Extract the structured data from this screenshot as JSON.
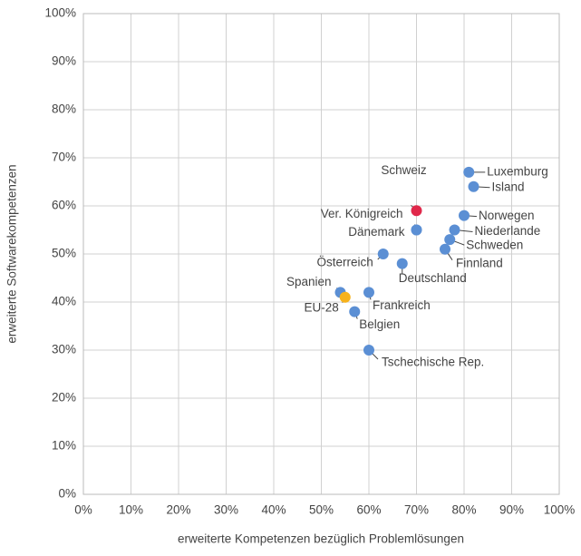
{
  "chart_data": {
    "type": "scatter",
    "xlabel": "erweiterte Kompetenzen bezüglich Problemlösungen",
    "ylabel": "erweiterte Softwarekompetenzen",
    "xlim": [
      0,
      100
    ],
    "ylim": [
      0,
      100
    ],
    "xticks": [
      {
        "value": 0,
        "label": "0%"
      },
      {
        "value": 10,
        "label": "10%"
      },
      {
        "value": 20,
        "label": "20%"
      },
      {
        "value": 30,
        "label": "30%"
      },
      {
        "value": 40,
        "label": "40%"
      },
      {
        "value": 50,
        "label": "50%"
      },
      {
        "value": 60,
        "label": "60%"
      },
      {
        "value": 70,
        "label": "70%"
      },
      {
        "value": 80,
        "label": "80%"
      },
      {
        "value": 90,
        "label": "90%"
      },
      {
        "value": 100,
        "label": "100%"
      }
    ],
    "yticks": [
      {
        "value": 0,
        "label": "0%"
      },
      {
        "value": 10,
        "label": "10%"
      },
      {
        "value": 20,
        "label": "20%"
      },
      {
        "value": 30,
        "label": "30%"
      },
      {
        "value": 40,
        "label": "40%"
      },
      {
        "value": 50,
        "label": "50%"
      },
      {
        "value": 60,
        "label": "60%"
      },
      {
        "value": 70,
        "label": "70%"
      },
      {
        "value": 80,
        "label": "80%"
      },
      {
        "value": 90,
        "label": "90%"
      },
      {
        "value": 100,
        "label": "100%"
      }
    ],
    "grid": true,
    "point_labels": [
      "Luxemburg",
      "Island",
      "Schweiz",
      "Ver. Königreich",
      "Dänemark",
      "Norwegen",
      "Niederlande",
      "Schweden",
      "Finnland",
      "Österreich",
      "Deutschland",
      "Spanien",
      "EU-28",
      "Frankreich",
      "Belgien",
      "Tschechische Rep."
    ],
    "x": [
      81,
      82,
      70,
      70,
      70,
      80,
      78,
      77,
      76,
      63,
      67,
      54,
      55,
      60,
      57,
      60
    ],
    "values": [
      67,
      64,
      59,
      55,
      55,
      58,
      55,
      53,
      51,
      50,
      48,
      42,
      41,
      42,
      38,
      30
    ],
    "colors": [
      "#5b8fd4",
      "#5b8fd4",
      "#e0284a",
      "#5b8fd4",
      "#5b8fd4",
      "#5b8fd4",
      "#5b8fd4",
      "#5b8fd4",
      "#5b8fd4",
      "#5b8fd4",
      "#5b8fd4",
      "#5b8fd4",
      "#f7b21b",
      "#5b8fd4",
      "#5b8fd4",
      "#5b8fd4"
    ]
  }
}
